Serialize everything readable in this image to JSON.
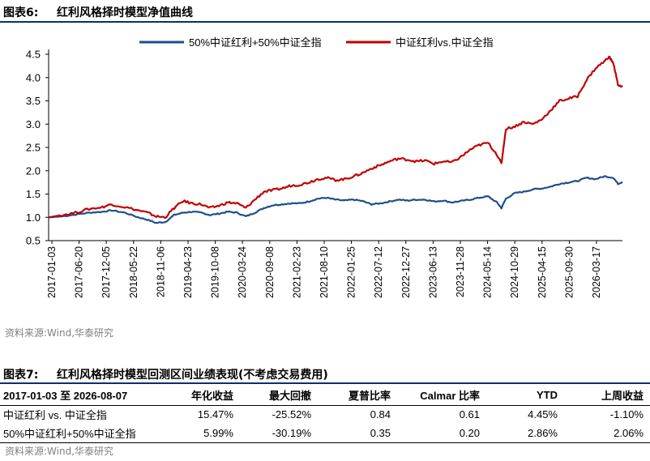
{
  "figure": {
    "number": "图表6:",
    "title": "红利风格择时模型净值曲线"
  },
  "chart_data": {
    "type": "line",
    "ylim": [
      0.5,
      4.5
    ],
    "yticks": [
      "0.5",
      "1.0",
      "1.5",
      "2.0",
      "2.5",
      "3.0",
      "3.5",
      "4.0",
      "4.5"
    ],
    "xtick_labels": [
      "2017-01-03",
      "2017-06-20",
      "2017-12-05",
      "2018-05-22",
      "2018-11-06",
      "2019-04-23",
      "2019-10-08",
      "2020-03-24",
      "2020-09-08",
      "2021-02-23",
      "2021-08-10",
      "2022-01-25",
      "2022-07-12",
      "2022-12-27",
      "2023-06-13",
      "2023-11-28",
      "2024-05-14",
      "2024-10-29",
      "2025-04-15",
      "2025-09-30",
      "2026-03-17"
    ],
    "legend_position": "top",
    "grid": false,
    "series": [
      {
        "name": "50%中证红利+50%中证全指",
        "color": "#1f4e8c",
        "points": [
          [
            0,
            1.0
          ],
          [
            3,
            1.02
          ],
          [
            6,
            1.06
          ],
          [
            9,
            1.1
          ],
          [
            12,
            1.12
          ],
          [
            14,
            1.15
          ],
          [
            17,
            1.1
          ],
          [
            20,
            1.0
          ],
          [
            22,
            0.95
          ],
          [
            24,
            0.88
          ],
          [
            26,
            0.9
          ],
          [
            28,
            1.05
          ],
          [
            30,
            1.1
          ],
          [
            32,
            1.12
          ],
          [
            34,
            1.1
          ],
          [
            36,
            1.05
          ],
          [
            38,
            1.08
          ],
          [
            40,
            1.12
          ],
          [
            42,
            1.1
          ],
          [
            44,
            1.02
          ],
          [
            46,
            1.1
          ],
          [
            48,
            1.2
          ],
          [
            50,
            1.26
          ],
          [
            52,
            1.28
          ],
          [
            54,
            1.3
          ],
          [
            56,
            1.3
          ],
          [
            58,
            1.34
          ],
          [
            60,
            1.4
          ],
          [
            62,
            1.42
          ],
          [
            64,
            1.38
          ],
          [
            66,
            1.36
          ],
          [
            68,
            1.38
          ],
          [
            70,
            1.35
          ],
          [
            72,
            1.28
          ],
          [
            74,
            1.3
          ],
          [
            76,
            1.34
          ],
          [
            78,
            1.38
          ],
          [
            80,
            1.36
          ],
          [
            82,
            1.38
          ],
          [
            84,
            1.38
          ],
          [
            86,
            1.34
          ],
          [
            88,
            1.36
          ],
          [
            90,
            1.32
          ],
          [
            92,
            1.35
          ],
          [
            94,
            1.38
          ],
          [
            96,
            1.42
          ],
          [
            98,
            1.45
          ],
          [
            100,
            1.32
          ],
          [
            101,
            1.2
          ],
          [
            102,
            1.4
          ],
          [
            104,
            1.52
          ],
          [
            106,
            1.55
          ],
          [
            108,
            1.6
          ],
          [
            110,
            1.62
          ],
          [
            112,
            1.66
          ],
          [
            114,
            1.72
          ],
          [
            116,
            1.75
          ],
          [
            118,
            1.78
          ],
          [
            120,
            1.85
          ],
          [
            122,
            1.82
          ],
          [
            124,
            1.88
          ],
          [
            126,
            1.85
          ],
          [
            127,
            1.72
          ],
          [
            128,
            1.76
          ]
        ]
      },
      {
        "name": "中证红利vs.中证全指",
        "color": "#c00000",
        "points": [
          [
            0,
            1.0
          ],
          [
            3,
            1.05
          ],
          [
            6,
            1.1
          ],
          [
            9,
            1.18
          ],
          [
            12,
            1.22
          ],
          [
            14,
            1.28
          ],
          [
            17,
            1.22
          ],
          [
            20,
            1.15
          ],
          [
            22,
            1.1
          ],
          [
            24,
            1.02
          ],
          [
            26,
            1.0
          ],
          [
            28,
            1.2
          ],
          [
            30,
            1.35
          ],
          [
            32,
            1.3
          ],
          [
            34,
            1.28
          ],
          [
            36,
            1.2
          ],
          [
            38,
            1.25
          ],
          [
            40,
            1.32
          ],
          [
            42,
            1.3
          ],
          [
            44,
            1.2
          ],
          [
            46,
            1.38
          ],
          [
            48,
            1.55
          ],
          [
            50,
            1.58
          ],
          [
            52,
            1.62
          ],
          [
            54,
            1.68
          ],
          [
            56,
            1.7
          ],
          [
            58,
            1.75
          ],
          [
            60,
            1.82
          ],
          [
            62,
            1.85
          ],
          [
            64,
            1.8
          ],
          [
            66,
            1.82
          ],
          [
            68,
            1.88
          ],
          [
            70,
            1.95
          ],
          [
            72,
            2.05
          ],
          [
            74,
            2.12
          ],
          [
            76,
            2.2
          ],
          [
            78,
            2.26
          ],
          [
            80,
            2.24
          ],
          [
            82,
            2.2
          ],
          [
            84,
            2.22
          ],
          [
            86,
            2.15
          ],
          [
            88,
            2.2
          ],
          [
            90,
            2.18
          ],
          [
            92,
            2.3
          ],
          [
            94,
            2.45
          ],
          [
            96,
            2.55
          ],
          [
            98,
            2.6
          ],
          [
            100,
            2.35
          ],
          [
            101,
            2.15
          ],
          [
            102,
            2.9
          ],
          [
            104,
            2.95
          ],
          [
            106,
            3.05
          ],
          [
            108,
            3.0
          ],
          [
            110,
            3.1
          ],
          [
            112,
            3.3
          ],
          [
            114,
            3.5
          ],
          [
            116,
            3.55
          ],
          [
            118,
            3.6
          ],
          [
            120,
            3.95
          ],
          [
            122,
            4.2
          ],
          [
            124,
            4.35
          ],
          [
            125,
            4.45
          ],
          [
            126,
            4.3
          ],
          [
            127,
            3.85
          ],
          [
            128,
            3.8
          ]
        ]
      }
    ]
  },
  "chart_source": "资料来源:Wind,华泰研究",
  "table_section": {
    "number": "图表7:",
    "title": "红利风格择时模型回测区间业绩表现(不考虑交易费用)",
    "headers": [
      "2017-01-03 至 2026-08-07",
      "年化收益",
      "最大回撤",
      "夏普比率",
      "Calmar 比率",
      "YTD",
      "上周收益"
    ],
    "rows": [
      [
        "中证红利 vs. 中证全指",
        "15.47%",
        "-25.52%",
        "0.84",
        "0.61",
        "4.45%",
        "-1.10%"
      ],
      [
        "50%中证红利+50%中证全指",
        "5.99%",
        "-30.19%",
        "0.35",
        "0.20",
        "2.86%",
        "2.06%"
      ]
    ],
    "source": "资料来源:Wind,华泰研究"
  }
}
